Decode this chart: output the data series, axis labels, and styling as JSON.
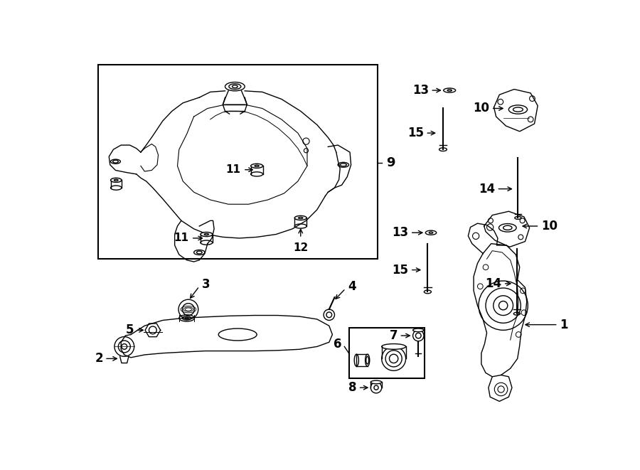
{
  "bg_color": "#ffffff",
  "line_color": "#000000",
  "fig_width": 9.0,
  "fig_height": 6.61,
  "dpi": 100,
  "lw": 1.0
}
